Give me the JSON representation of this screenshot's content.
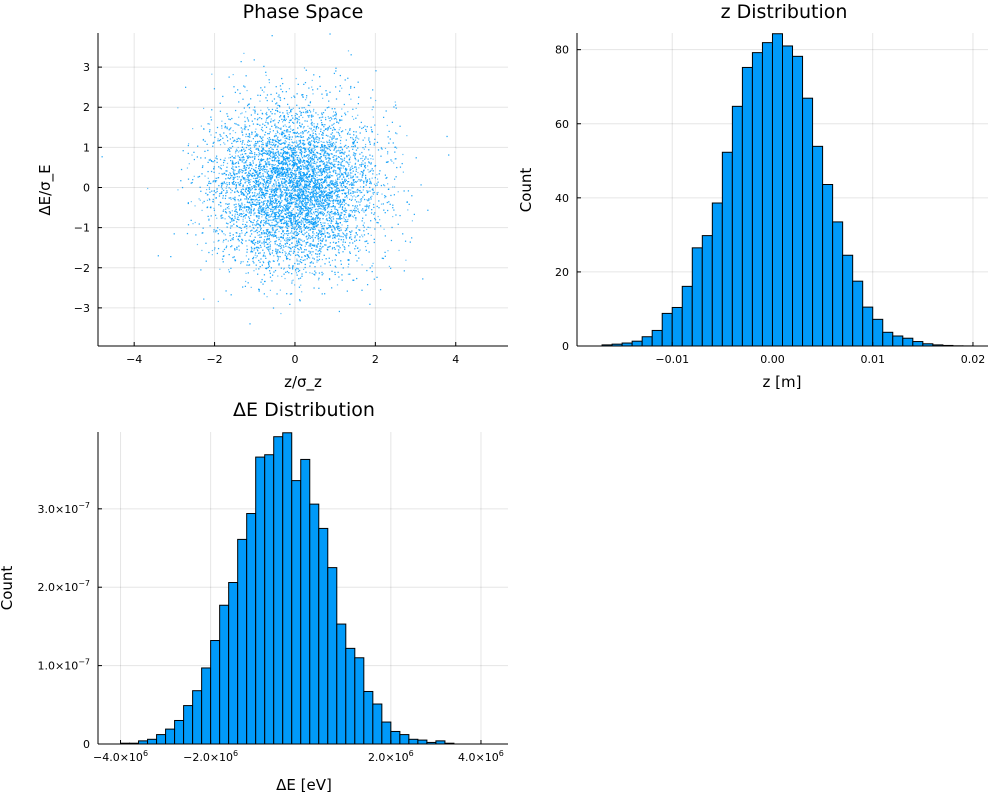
{
  "chart_data": [
    {
      "type": "scatter",
      "title": "Phase Space",
      "xlabel": "z/σ_z",
      "ylabel": "ΔE/σ_E",
      "xlim": [
        -4.9,
        5.3
      ],
      "ylim": [
        -3.95,
        3.85
      ],
      "xticks": [
        -4,
        -2,
        0,
        2,
        4
      ],
      "xtick_labels": [
        "−4",
        "−2",
        "0",
        "2",
        "4"
      ],
      "yticks": [
        -3,
        -2,
        -1,
        0,
        1,
        2,
        3
      ],
      "ytick_labels": [
        "−3",
        "−2",
        "−1",
        "0",
        "1",
        "2",
        "3"
      ],
      "grid": true,
      "legend": "none",
      "color": "#009af9",
      "point_count": 10000,
      "distribution": "bivariate normal, mean (0, 0), std (1, 1)"
    },
    {
      "type": "bar",
      "title": "z Distribution",
      "xlabel": "z [m]",
      "ylabel": "Count",
      "xlim": [
        -0.0195,
        0.0215
      ],
      "ylim": [
        0,
        84.5
      ],
      "xticks": [
        -0.01,
        0,
        0.01,
        0.02
      ],
      "xtick_labels": [
        "−0.01",
        "0.00",
        "0.01",
        "0.02"
      ],
      "yticks": [
        0,
        20,
        40,
        60,
        80
      ],
      "ytick_labels": [
        "0",
        "20",
        "40",
        "60",
        "80"
      ],
      "grid": true,
      "legend": "none",
      "color": "#009af9",
      "bin_start": -0.017,
      "bin_width": 0.001,
      "values": [
        0.3,
        0.5,
        0.8,
        1.3,
        2.5,
        4.2,
        8.8,
        10.4,
        16.1,
        26.5,
        29.8,
        38.6,
        52.3,
        64.7,
        75.2,
        79.2,
        81.9,
        84.3,
        81.0,
        78.2,
        66.9,
        53.9,
        43.6,
        33.5,
        24.5,
        17.5,
        10.5,
        7.2,
        3.7,
        2.7,
        2.1,
        1.2,
        0.6,
        0.3,
        0.15,
        0.05,
        0.02
      ]
    },
    {
      "type": "bar",
      "title": "ΔE Distribution",
      "xlabel": "ΔE [eV]",
      "ylabel": "Count",
      "xlim": [
        -4500000.0,
        4600000.0
      ],
      "ylim": [
        0,
        3.98e-07
      ],
      "xticks": [
        -4000000.0,
        -2000000.0,
        2000000.0,
        4000000.0
      ],
      "xtick_labels": [
        {
          "base": "−4.0×10",
          "exp": "6"
        },
        {
          "base": "−2.0×10",
          "exp": "6"
        },
        {
          "base": "2.0×10",
          "exp": "6"
        },
        {
          "base": "4.0×10",
          "exp": "6"
        }
      ],
      "yticks": [
        0,
        1e-07,
        2e-07,
        3e-07
      ],
      "ytick_labels": [
        {
          "base": "0",
          "exp": ""
        },
        {
          "base": "1.0×10",
          "exp": "−7"
        },
        {
          "base": "2.0×10",
          "exp": "−7"
        },
        {
          "base": "3.0×10",
          "exp": "−7"
        }
      ],
      "grid": true,
      "legend": "none",
      "color": "#009af9",
      "bin_start": -4000000.0,
      "bin_width": 200000.0,
      "values": [
        1e-09,
        1e-09,
        4e-09,
        6e-09,
        1.2e-08,
        1.9e-08,
        3e-08,
        4.9e-08,
        6.8e-08,
        9.7e-08,
        1.32e-07,
        1.77e-07,
        2.06e-07,
        2.61e-07,
        2.94e-07,
        3.66e-07,
        3.69e-07,
        3.92e-07,
        3.97e-07,
        3.36e-07,
        3.63e-07,
        3.06e-07,
        2.75e-07,
        2.25e-07,
        1.53e-07,
        1.22e-07,
        1.1e-07,
        6.7e-08,
        5.1e-08,
        2.8e-08,
        1.6e-08,
        1.2e-08,
        6e-09,
        5e-09,
        2e-09,
        4e-09,
        1e-09
      ]
    }
  ]
}
